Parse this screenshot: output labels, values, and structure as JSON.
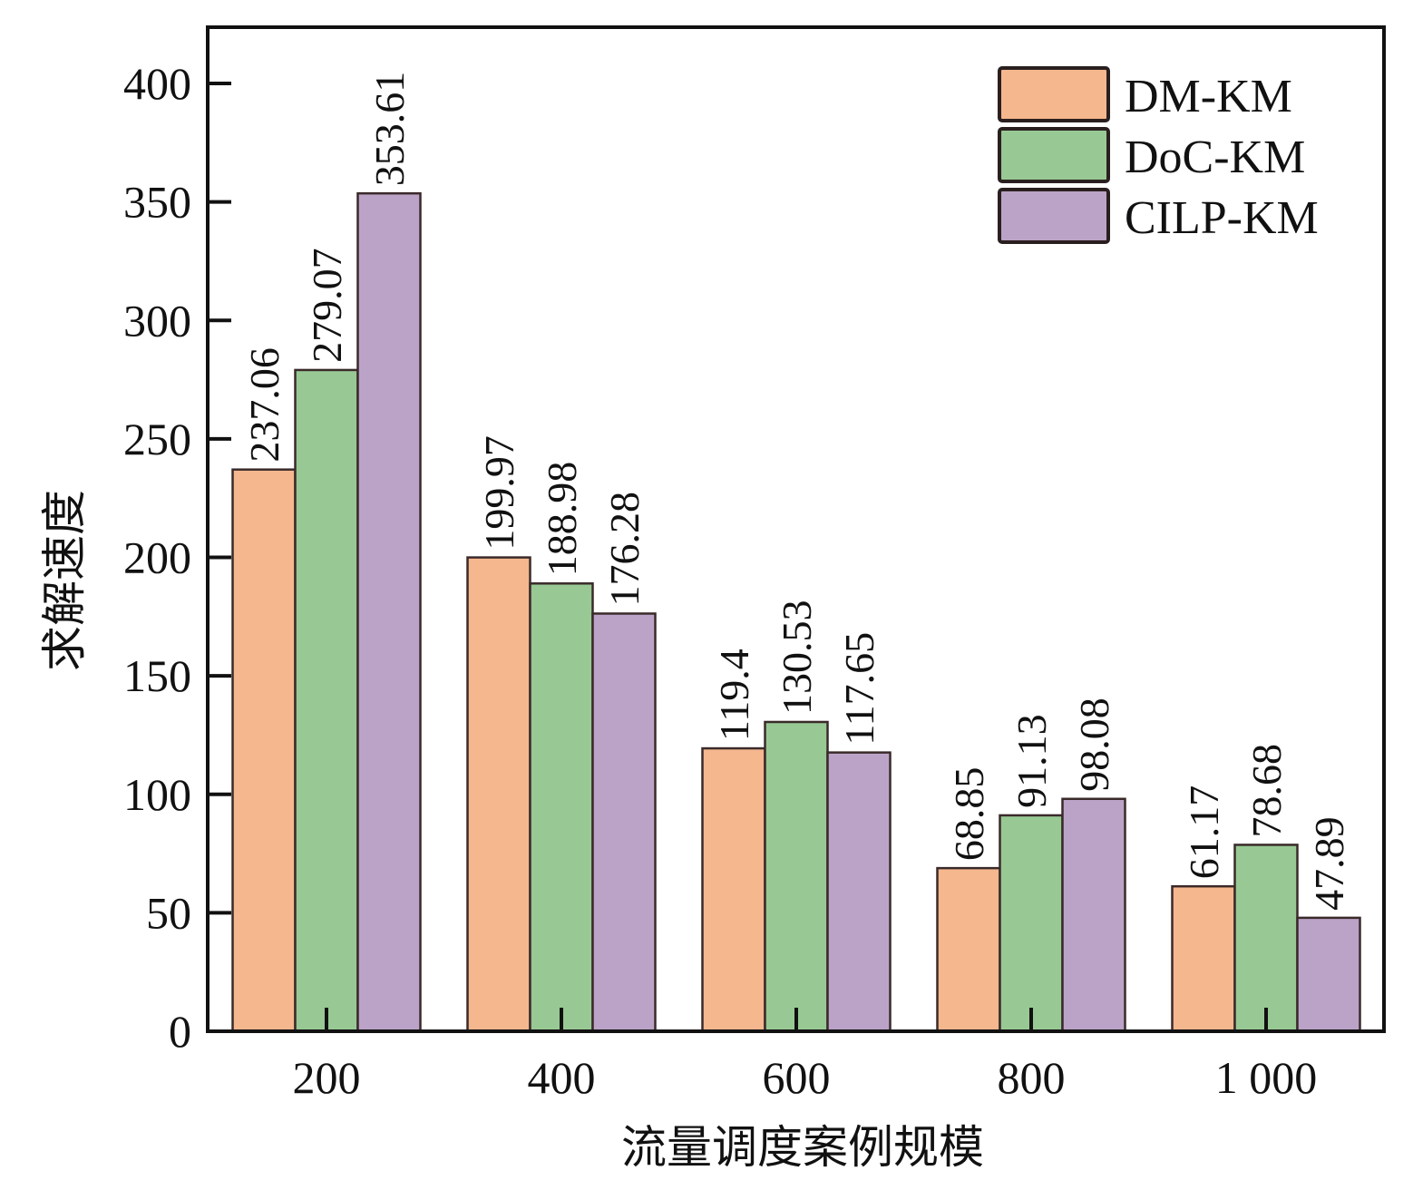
{
  "chart_data": {
    "type": "bar",
    "title": "",
    "xlabel": "流量调度案例规模",
    "ylabel": "求解速度",
    "categories": [
      "200",
      "400",
      "600",
      "800",
      "1 000"
    ],
    "series": [
      {
        "name": "DM-KM",
        "color": "#F5B78E",
        "values": [
          237.06,
          199.97,
          119.4,
          68.85,
          61.17
        ],
        "labels": [
          "237.06",
          "199.97",
          "119.4",
          "68.85",
          "61.17"
        ]
      },
      {
        "name": "DoC-KM",
        "color": "#98C994",
        "values": [
          279.07,
          188.98,
          130.53,
          91.13,
          78.68
        ],
        "labels": [
          "279.07",
          "188.98",
          "130.53",
          "91.13",
          "78.68"
        ]
      },
      {
        "name": "CILP-KM",
        "color": "#BBA3C8",
        "values": [
          353.61,
          176.28,
          117.65,
          98.08,
          47.89
        ],
        "labels": [
          "353.61",
          "176.28",
          "117.65",
          "98.08",
          "47.89"
        ]
      }
    ],
    "ylim": [
      0,
      424
    ],
    "yticks": [
      "0",
      "50",
      "100",
      "150",
      "200",
      "250",
      "300",
      "350",
      "400"
    ],
    "grid": false,
    "legend_position": "top-right"
  }
}
